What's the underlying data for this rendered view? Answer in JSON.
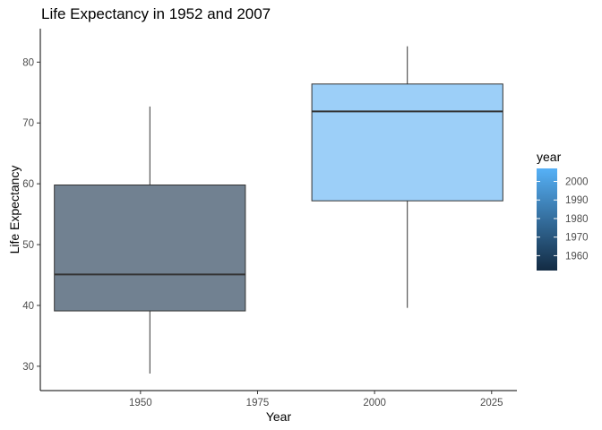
{
  "chart_data": {
    "type": "boxplot",
    "title": "Life Expectancy in 1952 and 2007",
    "xlabel": "Year",
    "ylabel": "Life Expectancy",
    "xlim": [
      1928.6,
      2030.4
    ],
    "ylim": [
      26,
      85.5
    ],
    "x_ticks": [
      1950,
      1975,
      2000,
      2025
    ],
    "y_ticks": [
      30,
      40,
      50,
      60,
      70,
      80
    ],
    "grid": false,
    "legend_position": "right",
    "boxes": [
      {
        "x": 1952,
        "xmin": 1931.6,
        "xmax": 1972.4,
        "whisker_low": 28.8,
        "q1": 39.1,
        "median": 45.1,
        "q3": 59.8,
        "whisker_high": 72.7,
        "fill": "#718191"
      },
      {
        "x": 2007,
        "xmin": 1986.6,
        "xmax": 2027.4,
        "whisker_low": 39.6,
        "q1": 57.2,
        "median": 71.9,
        "q3": 76.4,
        "whisker_high": 82.6,
        "fill": "#9ccff8"
      }
    ],
    "legend": {
      "title": "year",
      "type": "colorbar",
      "range": [
        1952,
        2007
      ],
      "ticks": [
        1960,
        1970,
        1980,
        1990,
        2000
      ],
      "color_low": "#132b43",
      "color_high": "#56b1f7"
    }
  }
}
